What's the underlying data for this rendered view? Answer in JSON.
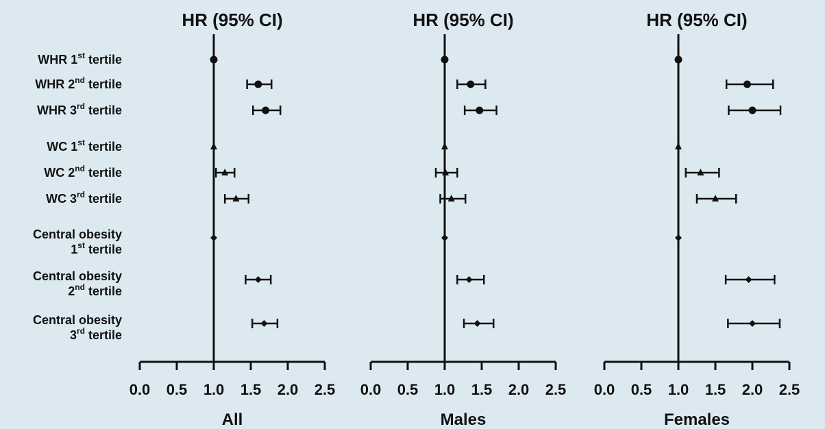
{
  "chart_data": [
    {
      "type": "forest",
      "title": "HR (95% CI)",
      "xlabel": "All",
      "xlim": [
        0.0,
        2.5
      ],
      "xticks": [
        "0.0",
        "0.5",
        "1.0",
        "1.5",
        "2.0",
        "2.5"
      ],
      "reference_line": 1.0,
      "rows": [
        {
          "group": "WHR",
          "tertile": 1,
          "marker": "circle",
          "hr": 1.0,
          "lo": 1.0,
          "hi": 1.0
        },
        {
          "group": "WHR",
          "tertile": 2,
          "marker": "circle",
          "hr": 1.6,
          "lo": 1.45,
          "hi": 1.78
        },
        {
          "group": "WHR",
          "tertile": 3,
          "marker": "circle",
          "hr": 1.7,
          "lo": 1.53,
          "hi": 1.9
        },
        {
          "group": "WC",
          "tertile": 1,
          "marker": "triangle",
          "hr": 1.0,
          "lo": 1.0,
          "hi": 1.0
        },
        {
          "group": "WC",
          "tertile": 2,
          "marker": "triangle",
          "hr": 1.15,
          "lo": 1.03,
          "hi": 1.28
        },
        {
          "group": "WC",
          "tertile": 3,
          "marker": "triangle",
          "hr": 1.3,
          "lo": 1.15,
          "hi": 1.47
        },
        {
          "group": "Central obesity",
          "tertile": 1,
          "marker": "diamond",
          "hr": 1.0,
          "lo": 1.0,
          "hi": 1.0
        },
        {
          "group": "Central obesity",
          "tertile": 2,
          "marker": "diamond",
          "hr": 1.6,
          "lo": 1.43,
          "hi": 1.77
        },
        {
          "group": "Central obesity",
          "tertile": 3,
          "marker": "diamond",
          "hr": 1.68,
          "lo": 1.52,
          "hi": 1.86
        }
      ]
    },
    {
      "type": "forest",
      "title": "HR (95% CI)",
      "xlabel": "Males",
      "xlim": [
        0.0,
        2.5
      ],
      "xticks": [
        "0.0",
        "0.5",
        "1.0",
        "1.5",
        "2.0",
        "2.5"
      ],
      "reference_line": 1.0,
      "rows": [
        {
          "group": "WHR",
          "tertile": 1,
          "marker": "circle",
          "hr": 1.0,
          "lo": 1.0,
          "hi": 1.0
        },
        {
          "group": "WHR",
          "tertile": 2,
          "marker": "circle",
          "hr": 1.35,
          "lo": 1.17,
          "hi": 1.55
        },
        {
          "group": "WHR",
          "tertile": 3,
          "marker": "circle",
          "hr": 1.47,
          "lo": 1.27,
          "hi": 1.7
        },
        {
          "group": "WC",
          "tertile": 1,
          "marker": "triangle",
          "hr": 1.0,
          "lo": 1.0,
          "hi": 1.0
        },
        {
          "group": "WC",
          "tertile": 2,
          "marker": "triangle",
          "hr": 1.01,
          "lo": 0.88,
          "hi": 1.17
        },
        {
          "group": "WC",
          "tertile": 3,
          "marker": "triangle",
          "hr": 1.09,
          "lo": 0.94,
          "hi": 1.28
        },
        {
          "group": "Central obesity",
          "tertile": 1,
          "marker": "diamond",
          "hr": 1.0,
          "lo": 1.0,
          "hi": 1.0
        },
        {
          "group": "Central obesity",
          "tertile": 2,
          "marker": "diamond",
          "hr": 1.33,
          "lo": 1.17,
          "hi": 1.53
        },
        {
          "group": "Central obesity",
          "tertile": 3,
          "marker": "diamond",
          "hr": 1.44,
          "lo": 1.26,
          "hi": 1.66
        }
      ]
    },
    {
      "type": "forest",
      "title": "HR (95% CI)",
      "xlabel": "Females",
      "xlim": [
        0.0,
        2.5
      ],
      "xticks": [
        "0.0",
        "0.5",
        "1.0",
        "1.5",
        "2.0",
        "2.5"
      ],
      "reference_line": 1.0,
      "rows": [
        {
          "group": "WHR",
          "tertile": 1,
          "marker": "circle",
          "hr": 1.0,
          "lo": 1.0,
          "hi": 1.0
        },
        {
          "group": "WHR",
          "tertile": 2,
          "marker": "circle",
          "hr": 1.93,
          "lo": 1.65,
          "hi": 2.28
        },
        {
          "group": "WHR",
          "tertile": 3,
          "marker": "circle",
          "hr": 2.0,
          "lo": 1.68,
          "hi": 2.38
        },
        {
          "group": "WC",
          "tertile": 1,
          "marker": "triangle",
          "hr": 1.0,
          "lo": 1.0,
          "hi": 1.0
        },
        {
          "group": "WC",
          "tertile": 2,
          "marker": "triangle",
          "hr": 1.3,
          "lo": 1.1,
          "hi": 1.55
        },
        {
          "group": "WC",
          "tertile": 3,
          "marker": "triangle",
          "hr": 1.5,
          "lo": 1.25,
          "hi": 1.78
        },
        {
          "group": "Central obesity",
          "tertile": 1,
          "marker": "diamond",
          "hr": 1.0,
          "lo": 1.0,
          "hi": 1.0
        },
        {
          "group": "Central obesity",
          "tertile": 2,
          "marker": "diamond",
          "hr": 1.95,
          "lo": 1.64,
          "hi": 2.3
        },
        {
          "group": "Central obesity",
          "tertile": 3,
          "marker": "diamond",
          "hr": 2.0,
          "lo": 1.67,
          "hi": 2.37
        }
      ]
    }
  ],
  "row_labels": [
    {
      "pre": "WHR 1",
      "sup": "st",
      "post": " tertile"
    },
    {
      "pre": "WHR 2",
      "sup": "nd",
      "post": " tertile"
    },
    {
      "pre": "WHR 3",
      "sup": "rd",
      "post": " tertile"
    },
    {
      "pre": "WC 1",
      "sup": "st",
      "post": " tertile"
    },
    {
      "pre": "WC 2",
      "sup": "nd",
      "post": " tertile"
    },
    {
      "pre": "WC 3",
      "sup": "rd",
      "post": " tertile"
    },
    {
      "line1": "Central obesity",
      "pre": "1",
      "sup": "st",
      "post": " tertile"
    },
    {
      "line1": "Central obesity",
      "pre": "2",
      "sup": "nd",
      "post": " tertile"
    },
    {
      "line1": "Central obesity",
      "pre": "3",
      "sup": "rd",
      "post": " tertile"
    }
  ],
  "colors": {
    "background": "#dde9f1",
    "ink": "#111111"
  }
}
